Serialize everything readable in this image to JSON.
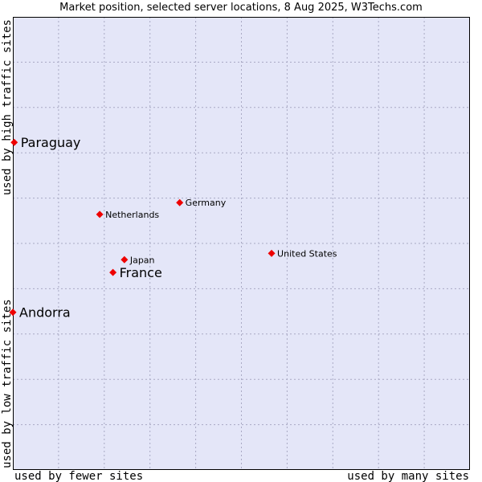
{
  "title": "Market position, selected server locations, 8 Aug 2025, W3Techs.com",
  "chart_data": {
    "type": "scatter",
    "title": "Market position, selected server locations, 8 Aug 2025, W3Techs.com",
    "xlabel_left": "used by fewer sites",
    "xlabel_right": "used by many sites",
    "ylabel_bottom": "used by low traffic sites",
    "ylabel_top": "used by high traffic sites",
    "xlim": [
      0,
      100
    ],
    "ylim": [
      0,
      100
    ],
    "grid": true,
    "colors": {
      "plot_background": "#e4e6f8",
      "grid": "#a9a9c4",
      "point": "#ee0000",
      "frame": "#000000"
    },
    "points": [
      {
        "name": "Paraguay",
        "x": 0.3,
        "y": 72.3,
        "emphasis": true
      },
      {
        "name": "Netherlands",
        "x": 19.0,
        "y": 56.4,
        "emphasis": false
      },
      {
        "name": "Germany",
        "x": 36.5,
        "y": 59.0,
        "emphasis": false
      },
      {
        "name": "United States",
        "x": 56.6,
        "y": 47.8,
        "emphasis": false
      },
      {
        "name": "Japan",
        "x": 24.4,
        "y": 46.4,
        "emphasis": false
      },
      {
        "name": "France",
        "x": 21.9,
        "y": 43.6,
        "emphasis": true
      },
      {
        "name": "Andorra",
        "x": 0.0,
        "y": 34.8,
        "emphasis": true
      }
    ]
  }
}
